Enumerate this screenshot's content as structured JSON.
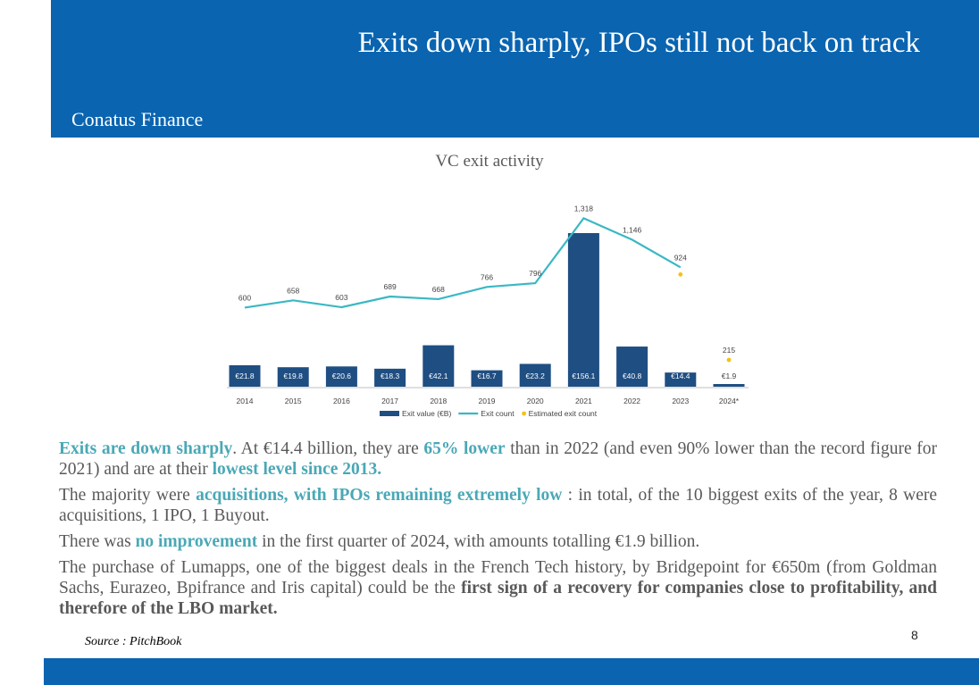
{
  "header": {
    "title": "Exits down sharply, IPOs still not back on track",
    "brand": "Conatus Finance"
  },
  "colors": {
    "header_bg": "#0a64b0",
    "bar": "#1f4e82",
    "line": "#3ab8c4",
    "estimate_dot": "#f2c314",
    "highlight": "#4aa8b6"
  },
  "chart_data": {
    "type": "bar",
    "title": "VC exit activity",
    "categories": [
      "2014",
      "2015",
      "2016",
      "2017",
      "2018",
      "2019",
      "2020",
      "2021",
      "2022",
      "2023",
      "2024*"
    ],
    "series": [
      {
        "name": "Exit value (€B)",
        "kind": "bar",
        "values": [
          21.8,
          19.8,
          20.6,
          18.3,
          42.1,
          16.7,
          23.2,
          156.1,
          40.8,
          14.4,
          1.9
        ],
        "labels": [
          "€21.8",
          "€19.8",
          "€20.6",
          "€18.3",
          "€42.1",
          "€16.7",
          "€23.2",
          "€156.1",
          "€40.8",
          "€14.4",
          "€1.9"
        ]
      },
      {
        "name": "Exit count",
        "kind": "line",
        "values": [
          600,
          658,
          603,
          689,
          668,
          766,
          796,
          1318,
          1146,
          924,
          null
        ],
        "labels": [
          "600",
          "658",
          "603",
          "689",
          "668",
          "766",
          "796",
          "1,318",
          "1,146",
          "924",
          ""
        ]
      },
      {
        "name": "Estimated exit count",
        "kind": "point",
        "values": [
          null,
          null,
          null,
          null,
          null,
          null,
          null,
          null,
          null,
          924,
          215
        ],
        "labels": [
          "",
          "",
          "",
          "",
          "",
          "",
          "",
          "",
          "",
          "",
          "215"
        ]
      }
    ],
    "legend": "bottom"
  },
  "body": {
    "p1": {
      "a": "Exits are down sharply",
      "b": ". At €14.4 billion, they are ",
      "c": "65% lower",
      "d": " than in 2022 (and even 90% lower than the record figure for 2021) and are at their ",
      "e": "lowest level since 2013."
    },
    "p2": {
      "a": "The majority were ",
      "b": "acquisitions, with IPOs remaining extremely low",
      "c": " : in total, of the 10 biggest exits of the year, 8 were acquisitions, 1 IPO, 1 Buyout."
    },
    "p3": {
      "a": "There was ",
      "b": "no improvement",
      "c": " in the first quarter of 2024, with amounts totalling €1.9 billion."
    },
    "p4": {
      "a": "The purchase of Lumapps, one of the biggest deals in the French Tech history, by Bridgepoint for €650m (from Goldman Sachs, Eurazeo, Bpifrance and Iris capital) could be the ",
      "b": "first sign of a recovery for companies close to profitability, and therefore of the LBO market."
    }
  },
  "source": "Source : PitchBook",
  "page_number": "8"
}
